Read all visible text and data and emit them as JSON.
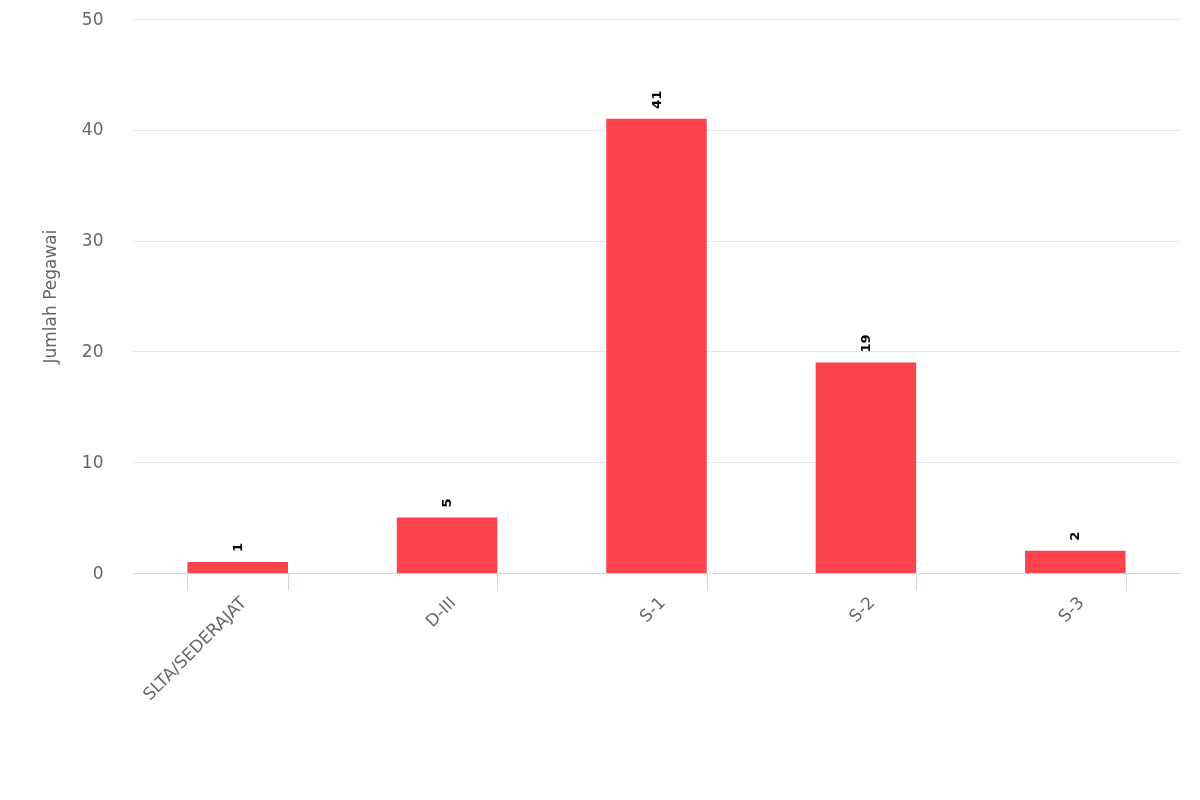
{
  "chart_data": {
    "type": "bar",
    "ylabel": "Jumlah Pegawai",
    "categories": [
      "SLTA/SEDERAJAT",
      "D-III",
      "S-1",
      "S-2",
      "S-3"
    ],
    "values": [
      1,
      5,
      41,
      19,
      2
    ],
    "color": "#fd434e",
    "ylim": [
      0,
      50
    ],
    "yticks": [
      0,
      10,
      20,
      30,
      40,
      50
    ],
    "grid": "y",
    "data_labels": true
  }
}
